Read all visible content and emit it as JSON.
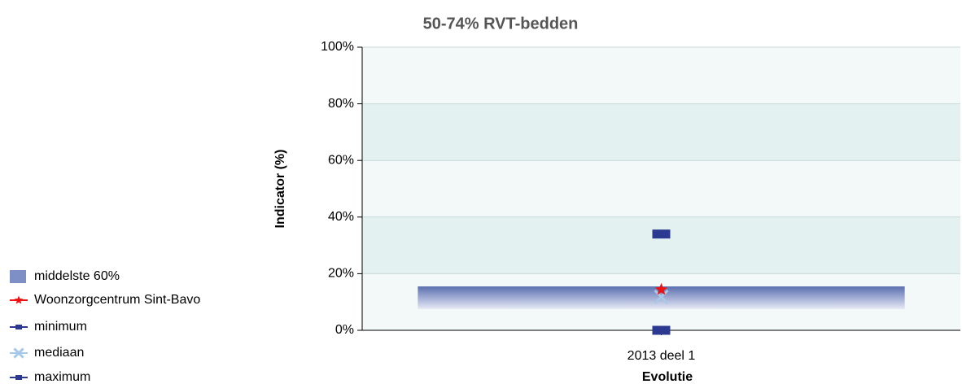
{
  "chart_data": {
    "type": "range-point",
    "title": "50-74% RVT-bedden",
    "x_label": "Evolutie",
    "y_label": "Indicator (%)",
    "categories": [
      "2013 deel 1"
    ],
    "ylim": [
      0,
      100
    ],
    "yticks": [
      {
        "value": 0,
        "label": "0%"
      },
      {
        "value": 20,
        "label": "20%"
      },
      {
        "value": 40,
        "label": "40%"
      },
      {
        "value": 60,
        "label": "60%"
      },
      {
        "value": 80,
        "label": "80%"
      },
      {
        "value": 100,
        "label": "100%"
      }
    ],
    "grid": true,
    "legend": "left",
    "series": [
      {
        "name": "middelste 60%",
        "marker": "band",
        "color": "#7d8fc4",
        "low": [
          7.5
        ],
        "high": [
          15.5
        ]
      },
      {
        "name": "Woonzorgcentrum Sint-Bavo",
        "marker": "star",
        "color": "#ee1111",
        "values": [
          14.4
        ]
      },
      {
        "name": "minimum",
        "marker": "square",
        "color": "#2b3990",
        "values": [
          0
        ]
      },
      {
        "name": "mediaan",
        "marker": "cross",
        "color": "#a8c8e8",
        "values": [
          11.8
        ]
      },
      {
        "name": "maximum",
        "marker": "square",
        "color": "#2b3990",
        "values": [
          34
        ]
      }
    ]
  }
}
